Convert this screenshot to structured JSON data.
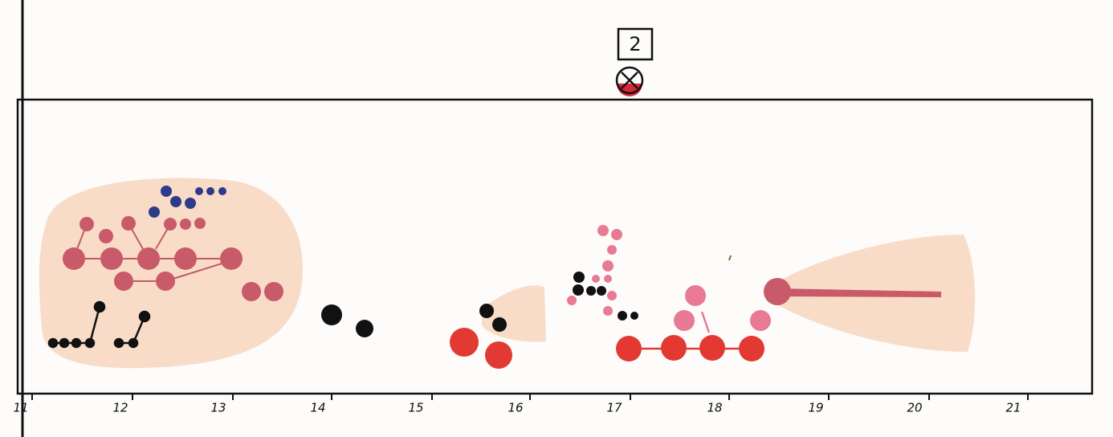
{
  "header": {
    "label": "2"
  },
  "axis": {
    "labels": [
      "11",
      "12",
      "13",
      "14",
      "15",
      "16",
      "17",
      "18",
      "19",
      "20",
      "21"
    ]
  }
}
